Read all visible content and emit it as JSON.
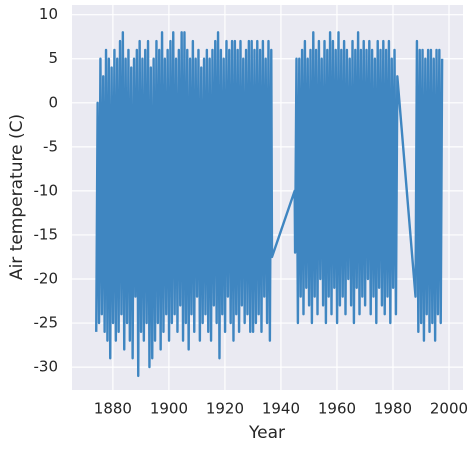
{
  "chart_data": {
    "type": "line",
    "xlabel": "Year",
    "ylabel": "Air temperature (C)",
    "color": "#3f86c1",
    "grid": true,
    "xlim": [
      1865.4,
      2005
    ],
    "ylim": [
      -32.6,
      11.1
    ],
    "xticks": [
      1880,
      1900,
      1920,
      1940,
      1960,
      1980,
      2000
    ],
    "yticks": [
      -30,
      -25,
      -20,
      -15,
      -10,
      -5,
      0,
      5,
      10
    ],
    "x": [
      1874.05,
      1874.55,
      1875.05,
      1875.55,
      1876.05,
      1876.55,
      1877.05,
      1877.55,
      1878.05,
      1878.55,
      1879.05,
      1879.55,
      1880.05,
      1880.55,
      1881.05,
      1881.55,
      1882.05,
      1882.55,
      1883.05,
      1883.55,
      1884.05,
      1884.55,
      1885.05,
      1885.55,
      1886.05,
      1886.55,
      1887.05,
      1887.55,
      1888.05,
      1888.55,
      1889.05,
      1889.55,
      1890.05,
      1890.55,
      1891.05,
      1891.55,
      1892.05,
      1892.55,
      1893.05,
      1893.55,
      1894.05,
      1894.55,
      1895.05,
      1895.55,
      1896.05,
      1896.55,
      1897.05,
      1897.55,
      1898.05,
      1898.55,
      1899.05,
      1899.55,
      1900.05,
      1900.55,
      1901.05,
      1901.55,
      1902.05,
      1902.55,
      1903.05,
      1903.55,
      1904.05,
      1904.55,
      1905.05,
      1905.55,
      1906.05,
      1906.55,
      1907.05,
      1907.55,
      1908.05,
      1908.55,
      1909.05,
      1909.55,
      1910.05,
      1910.55,
      1911.05,
      1911.55,
      1912.05,
      1912.55,
      1913.05,
      1913.55,
      1914.05,
      1914.55,
      1915.05,
      1915.55,
      1916.05,
      1916.55,
      1917.05,
      1917.55,
      1918.05,
      1918.55,
      1919.05,
      1919.55,
      1920.05,
      1920.55,
      1921.05,
      1921.55,
      1922.05,
      1922.55,
      1923.05,
      1923.55,
      1924.05,
      1924.55,
      1925.05,
      1925.55,
      1926.05,
      1926.55,
      1927.05,
      1927.55,
      1928.05,
      1928.55,
      1929.05,
      1929.55,
      1930.05,
      1930.55,
      1931.05,
      1931.55,
      1932.05,
      1932.55,
      1933.05,
      1933.55,
      1934.05,
      1934.55,
      1935.05,
      1935.55,
      1936.05,
      1936.55,
      1936.8,
      1944.9,
      1945.05,
      1945.55,
      1946.05,
      1946.55,
      1947.05,
      1947.55,
      1948.05,
      1948.55,
      1949.05,
      1949.55,
      1950.05,
      1950.55,
      1951.05,
      1951.55,
      1952.05,
      1952.55,
      1953.05,
      1953.55,
      1954.05,
      1954.55,
      1955.05,
      1955.55,
      1956.05,
      1956.55,
      1957.05,
      1957.55,
      1958.05,
      1958.55,
      1959.05,
      1959.55,
      1960.05,
      1960.55,
      1961.05,
      1961.55,
      1962.05,
      1962.55,
      1963.05,
      1963.55,
      1964.05,
      1964.55,
      1965.05,
      1965.55,
      1966.05,
      1966.55,
      1967.05,
      1967.55,
      1968.05,
      1968.55,
      1969.05,
      1969.55,
      1970.05,
      1970.55,
      1971.05,
      1971.55,
      1972.05,
      1972.55,
      1973.05,
      1973.55,
      1974.05,
      1974.55,
      1975.05,
      1975.55,
      1976.05,
      1976.55,
      1977.05,
      1977.55,
      1978.05,
      1978.55,
      1979.05,
      1979.55,
      1980.05,
      1980.55,
      1981.05,
      1981.55,
      1988.05,
      1988.55,
      1989.05,
      1989.55,
      1990.05,
      1990.55,
      1991.05,
      1991.55,
      1992.05,
      1992.55,
      1993.05,
      1993.55,
      1994.05,
      1994.55,
      1995.05,
      1995.55,
      1996.05,
      1996.55,
      1997.05,
      1997.55
    ],
    "values": [
      -26,
      0,
      -25,
      5,
      -24,
      3,
      -26,
      6,
      -27,
      5,
      -29,
      4,
      -25,
      6,
      -27,
      5,
      -26,
      7,
      -24,
      8,
      -28,
      5,
      -25,
      6,
      -27,
      4,
      -29,
      5,
      -22,
      6,
      -31,
      7,
      -26,
      5,
      -27,
      6,
      -25,
      7,
      -30,
      4,
      -29,
      5,
      -27,
      7,
      -25,
      6,
      -28,
      8,
      -26,
      5,
      -24,
      6,
      -27,
      7,
      -25,
      8,
      -24,
      5,
      -26,
      6,
      -23,
      8,
      -27,
      8,
      -25,
      6,
      -28,
      5,
      -24,
      7,
      -26,
      5,
      -22,
      6,
      -27,
      4,
      -25,
      5,
      -24,
      6,
      -26,
      5,
      -27,
      6,
      -23,
      7,
      -25,
      8,
      -29,
      6,
      -24,
      5,
      -26,
      7,
      -22,
      6,
      -25,
      7,
      -27,
      7,
      -24,
      6,
      -26,
      7,
      -23,
      5,
      -25,
      6,
      -24,
      7,
      -26,
      7,
      -26,
      6,
      -25,
      7,
      -24,
      6,
      -26,
      7,
      -22,
      5,
      -25,
      7,
      -27,
      6,
      -17.5,
      -10,
      -17,
      5,
      -25,
      5,
      -22,
      6,
      -24,
      7,
      -21,
      5,
      -23,
      6,
      -25,
      8,
      -22,
      6,
      -24,
      7,
      -20,
      5,
      -23,
      7,
      -25,
      6,
      -22,
      8,
      -24,
      7,
      -21,
      6,
      -25,
      8,
      -23,
      6,
      -22,
      7,
      -24,
      6,
      -20,
      5,
      -23,
      7,
      -25,
      6,
      -21,
      8,
      -24,
      6,
      -22,
      7,
      -23,
      6,
      -20,
      7,
      -24,
      6,
      -22,
      5,
      -25,
      7,
      -21,
      6,
      -23,
      7,
      -24,
      6,
      -22,
      7,
      -25,
      5,
      -21,
      6,
      -24,
      3,
      -22,
      7,
      -26,
      6,
      -25,
      6,
      -27,
      5,
      -24,
      6,
      -26,
      6,
      -25,
      5,
      -27,
      6,
      -24,
      6,
      -25,
      5
    ]
  }
}
